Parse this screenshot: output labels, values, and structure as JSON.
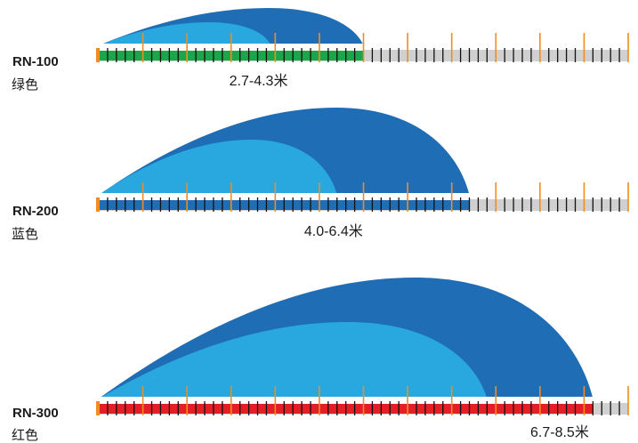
{
  "chart_data": {
    "type": "diagram",
    "axis": {
      "min": 0,
      "max": 12,
      "minor_step": 0.2,
      "major_step": 1
    },
    "colors": {
      "spray_outer": "#1f6db5",
      "spray_inner": "#29a8e0",
      "track_gray": "#d0d0d0",
      "tick_minor": "#111111",
      "tick_major": "#f28c1e",
      "origin_marker": "#f28c1e"
    },
    "models": [
      {
        "model": "RN-100",
        "color_name": "绿色",
        "band_color": "#1aa64a",
        "inner_reach": 3.9,
        "outer_reach": 6.0,
        "range_label": "2.7-4.3米",
        "range_min": 2.7,
        "range_max": 4.3
      },
      {
        "model": "RN-200",
        "color_name": "蓝色",
        "band_color": "#1f6db5",
        "inner_reach": 5.4,
        "outer_reach": 8.4,
        "range_label": "4.0-6.4米",
        "range_min": 4.0,
        "range_max": 6.4
      },
      {
        "model": "RN-300",
        "color_name": "红色",
        "band_color": "#e31e25",
        "inner_reach": 8.8,
        "outer_reach": 11.2,
        "range_label": "6.7-8.5米",
        "range_min": 6.7,
        "range_max": 8.5
      }
    ]
  }
}
